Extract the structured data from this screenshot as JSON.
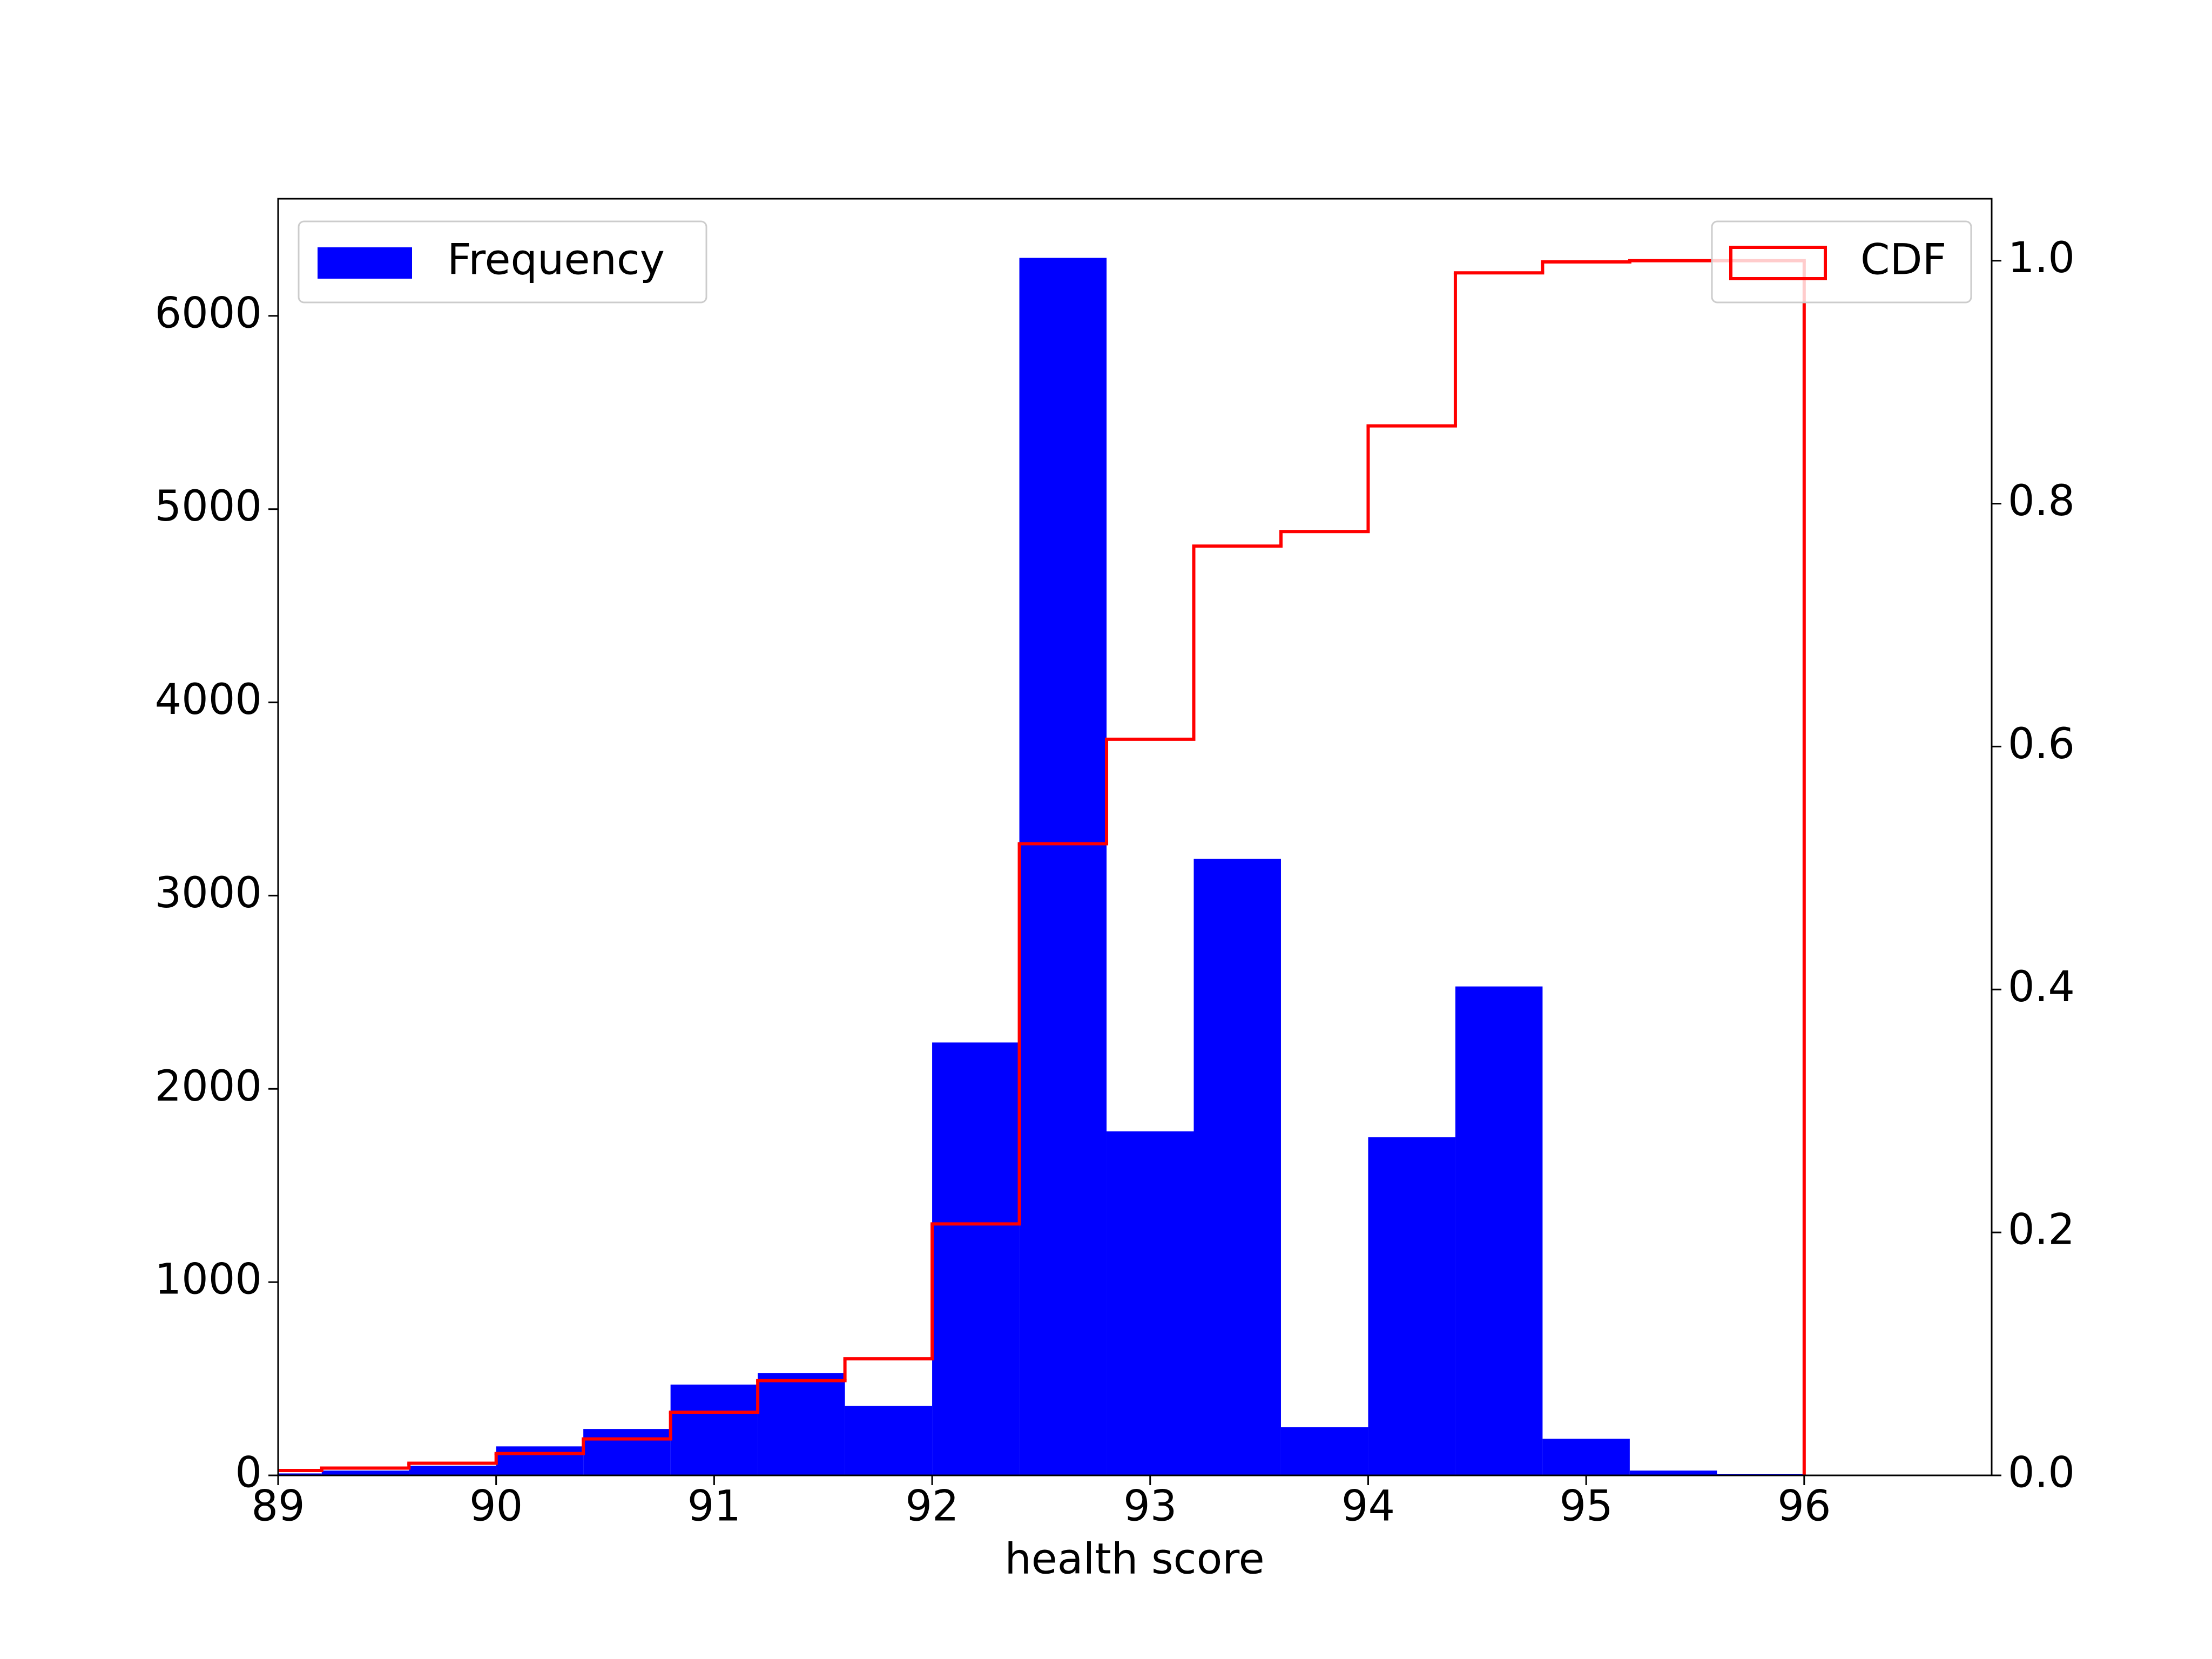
{
  "chart_data": {
    "type": "histogram",
    "xlabel": "health score",
    "bins": [
      88.8,
      89.2,
      89.6,
      90.0,
      90.4,
      90.8,
      91.2,
      91.6,
      92.0,
      92.4,
      92.8,
      93.2,
      93.6,
      94.0,
      94.4,
      94.8,
      95.2,
      95.6,
      96.0
    ],
    "series": [
      {
        "name": "Frequency",
        "color": "#0000ff",
        "legend": "upper left",
        "values": [
          10,
          25,
          50,
          150,
          240,
          470,
          530,
          360,
          2240,
          6300,
          1780,
          3190,
          250,
          1750,
          2530,
          190,
          25,
          8
        ]
      },
      {
        "name": "CDF",
        "color": "#ff0000",
        "axis": "y2",
        "style": "step",
        "legend": "upper right",
        "values": [
          0.004,
          0.006,
          0.01,
          0.018,
          0.03,
          0.052,
          0.078,
          0.096,
          0.207,
          0.52,
          0.606,
          0.765,
          0.777,
          0.864,
          0.99,
          0.999,
          1.0,
          1.0
        ]
      }
    ],
    "xlim": [
      89,
      96.86
    ],
    "xticks": [
      89,
      90,
      91,
      92,
      93,
      94,
      95,
      96
    ],
    "ylim": [
      0,
      6606
    ],
    "yticks": [
      0,
      1000,
      2000,
      3000,
      4000,
      5000,
      6000
    ],
    "y2lim": [
      0,
      1.051
    ],
    "y2ticks": [
      {
        "value": 0,
        "label": "0.0"
      },
      0.2,
      0.4,
      0.6,
      0.8,
      {
        "value": 1,
        "label": "1.0"
      }
    ]
  }
}
